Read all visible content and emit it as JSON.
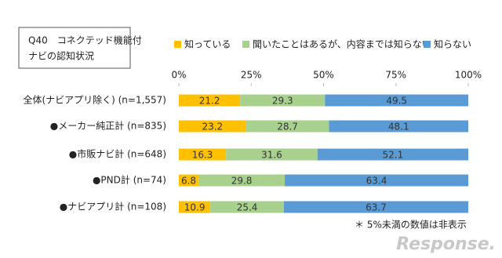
{
  "chart_data": {
    "type": "stacked-bar-horizontal",
    "title_lines": [
      "Q40　コネクテッド機能付",
      "ナビの認知状況"
    ],
    "categories": [
      "全体(ナビアプリ除く) (n=1,557)",
      "●メーカー純正計 (n=835)",
      "●市販ナビ計 (n=648)",
      "●PND計 (n=74)",
      "●ナビアプリ計 (n=108)"
    ],
    "series": [
      {
        "name": "知っている",
        "color": "#ffc000",
        "values": [
          21.2,
          23.2,
          16.3,
          6.8,
          10.9
        ]
      },
      {
        "name": "聞いたことはあるが、内容までは知らない",
        "color": "#a9d18e",
        "values": [
          29.3,
          28.7,
          31.6,
          29.8,
          25.4
        ]
      },
      {
        "name": "知らない",
        "color": "#5b9bd5",
        "values": [
          49.5,
          48.1,
          52.1,
          63.4,
          63.7
        ]
      }
    ],
    "xlim": [
      0,
      100
    ],
    "xticks": [
      {
        "value": 0,
        "label": "0%"
      },
      {
        "value": 25,
        "label": "25%"
      },
      {
        "value": 50,
        "label": "50%"
      },
      {
        "value": 75,
        "label": "75%"
      },
      {
        "value": 100,
        "label": "100%"
      }
    ],
    "note": "＊ 5%未満の数値は非表示",
    "watermark": "Response."
  }
}
